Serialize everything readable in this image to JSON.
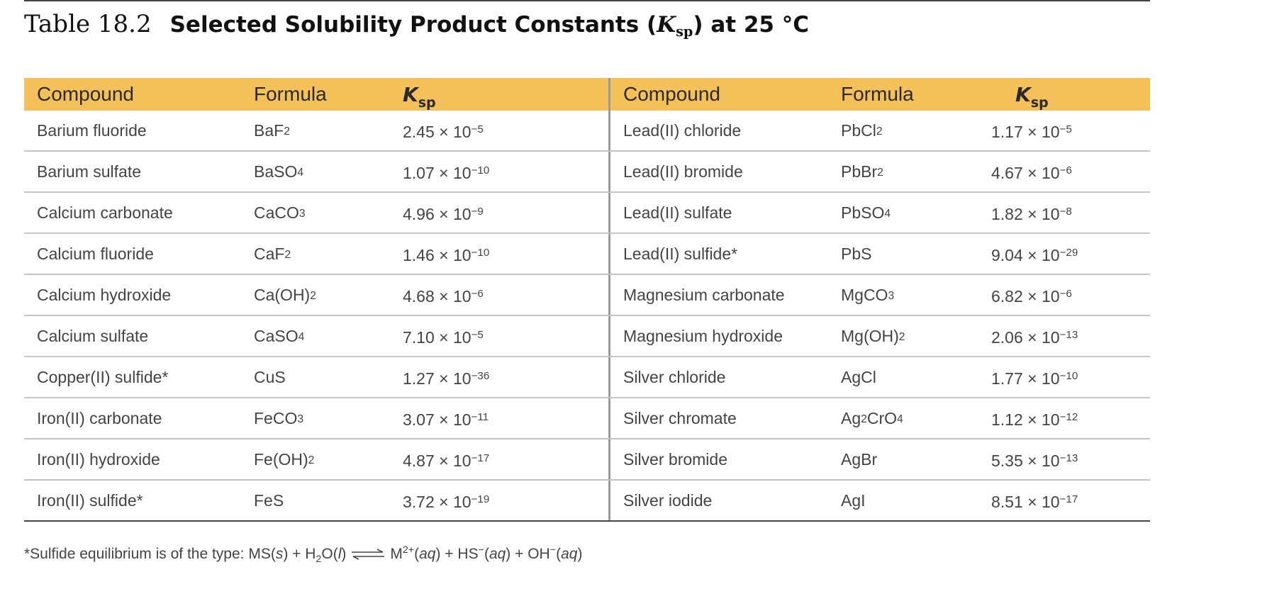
{
  "title": {
    "number": "Table 18.2",
    "text_before": "Selected Solubility Product Constants (",
    "k_symbol": "K",
    "k_subscript": "sp",
    "text_after": ") at 25 °C"
  },
  "header": {
    "compound": "Compound",
    "formula": "Formula",
    "k_symbol": "K",
    "k_subscript": "sp"
  },
  "left_rows": [
    {
      "compound": "Barium fluoride",
      "formula": [
        {
          "t": "BaF"
        },
        {
          "sub": "2"
        }
      ],
      "k": {
        "m": "2.45 × 10",
        "e": "−5"
      }
    },
    {
      "compound": "Barium sulfate",
      "formula": [
        {
          "t": "BaSO"
        },
        {
          "sub": "4"
        }
      ],
      "k": {
        "m": "1.07 × 10",
        "e": "−10"
      }
    },
    {
      "compound": "Calcium carbonate",
      "formula": [
        {
          "t": "CaCO"
        },
        {
          "sub": "3"
        }
      ],
      "k": {
        "m": "4.96 × 10",
        "e": "−9"
      }
    },
    {
      "compound": "Calcium fluoride",
      "formula": [
        {
          "t": "CaF"
        },
        {
          "sub": "2"
        }
      ],
      "k": {
        "m": "1.46 × 10",
        "e": "−10"
      }
    },
    {
      "compound": "Calcium hydroxide",
      "formula": [
        {
          "t": "Ca(OH)"
        },
        {
          "sub": "2"
        }
      ],
      "k": {
        "m": "4.68 × 10",
        "e": "−6"
      }
    },
    {
      "compound": "Calcium sulfate",
      "formula": [
        {
          "t": "CaSO"
        },
        {
          "sub": "4"
        }
      ],
      "k": {
        "m": "7.10 × 10",
        "e": "−5"
      }
    },
    {
      "compound": "Copper(II) sulfide*",
      "formula": [
        {
          "t": "CuS"
        }
      ],
      "k": {
        "m": "1.27 × 10",
        "e": "−36"
      }
    },
    {
      "compound": "Iron(II) carbonate",
      "formula": [
        {
          "t": "FeCO"
        },
        {
          "sub": "3"
        }
      ],
      "k": {
        "m": "3.07 × 10",
        "e": "−11"
      }
    },
    {
      "compound": "Iron(II) hydroxide",
      "formula": [
        {
          "t": "Fe(OH)"
        },
        {
          "sub": "2"
        }
      ],
      "k": {
        "m": "4.87 × 10",
        "e": "−17"
      }
    },
    {
      "compound": "Iron(II) sulfide*",
      "formula": [
        {
          "t": "FeS"
        }
      ],
      "k": {
        "m": "3.72 × 10",
        "e": "−19"
      }
    }
  ],
  "right_rows": [
    {
      "compound": "Lead(II) chloride",
      "formula": [
        {
          "t": "PbCl"
        },
        {
          "sub": "2"
        }
      ],
      "k": {
        "m": "1.17 × 10",
        "e": "−5"
      }
    },
    {
      "compound": "Lead(II) bromide",
      "formula": [
        {
          "t": "PbBr"
        },
        {
          "sub": "2"
        }
      ],
      "k": {
        "m": "4.67 × 10",
        "e": "−6"
      }
    },
    {
      "compound": "Lead(II) sulfate",
      "formula": [
        {
          "t": "PbSO"
        },
        {
          "sub": "4"
        }
      ],
      "k": {
        "m": "1.82 × 10",
        "e": "−8"
      }
    },
    {
      "compound": "Lead(II) sulfide*",
      "formula": [
        {
          "t": "PbS"
        }
      ],
      "k": {
        "m": "9.04 × 10",
        "e": "−29"
      }
    },
    {
      "compound": "Magnesium carbonate",
      "formula": [
        {
          "t": "MgCO"
        },
        {
          "sub": "3"
        }
      ],
      "k": {
        "m": "6.82 × 10",
        "e": "−6"
      }
    },
    {
      "compound": "Magnesium hydroxide",
      "formula": [
        {
          "t": "Mg(OH)"
        },
        {
          "sub": "2"
        }
      ],
      "k": {
        "m": "2.06 × 10",
        "e": "−13"
      }
    },
    {
      "compound": "Silver chloride",
      "formula": [
        {
          "t": "AgCl"
        }
      ],
      "k": {
        "m": "1.77 × 10",
        "e": "−10"
      }
    },
    {
      "compound": "Silver chromate",
      "formula": [
        {
          "t": "Ag"
        },
        {
          "sub": "2"
        },
        {
          "t": "CrO"
        },
        {
          "sub": "4"
        }
      ],
      "k": {
        "m": "1.12 × 10",
        "e": "−12"
      }
    },
    {
      "compound": "Silver bromide",
      "formula": [
        {
          "t": "AgBr"
        }
      ],
      "k": {
        "m": "5.35 × 10",
        "e": "−13"
      }
    },
    {
      "compound": "Silver iodide",
      "formula": [
        {
          "t": "AgI"
        }
      ],
      "k": {
        "m": "8.51 × 10",
        "e": "−17"
      }
    }
  ],
  "footnote": {
    "left": [
      {
        "t": "*Sulfide equilibrium is of the type: MS("
      },
      {
        "i": "s"
      },
      {
        "t": ") + H"
      },
      {
        "sub": "2"
      },
      {
        "t": "O("
      },
      {
        "i": "l"
      },
      {
        "t": ")"
      }
    ],
    "right": [
      {
        "t": "M"
      },
      {
        "sup": "2+"
      },
      {
        "t": "("
      },
      {
        "i": "aq"
      },
      {
        "t": ") + HS"
      },
      {
        "sup": "−"
      },
      {
        "t": "("
      },
      {
        "i": "aq"
      },
      {
        "t": ") + OH"
      },
      {
        "sup": "−"
      },
      {
        "t": "("
      },
      {
        "i": "aq"
      },
      {
        "t": ")"
      }
    ]
  },
  "colors": {
    "header_bg": "#f4c05a",
    "row_divider": "#c4c4c4",
    "bottom_rule": "#444444",
    "text": "#444444"
  },
  "icons": {
    "footnote_arrow": "equilibrium-arrow-icon"
  }
}
